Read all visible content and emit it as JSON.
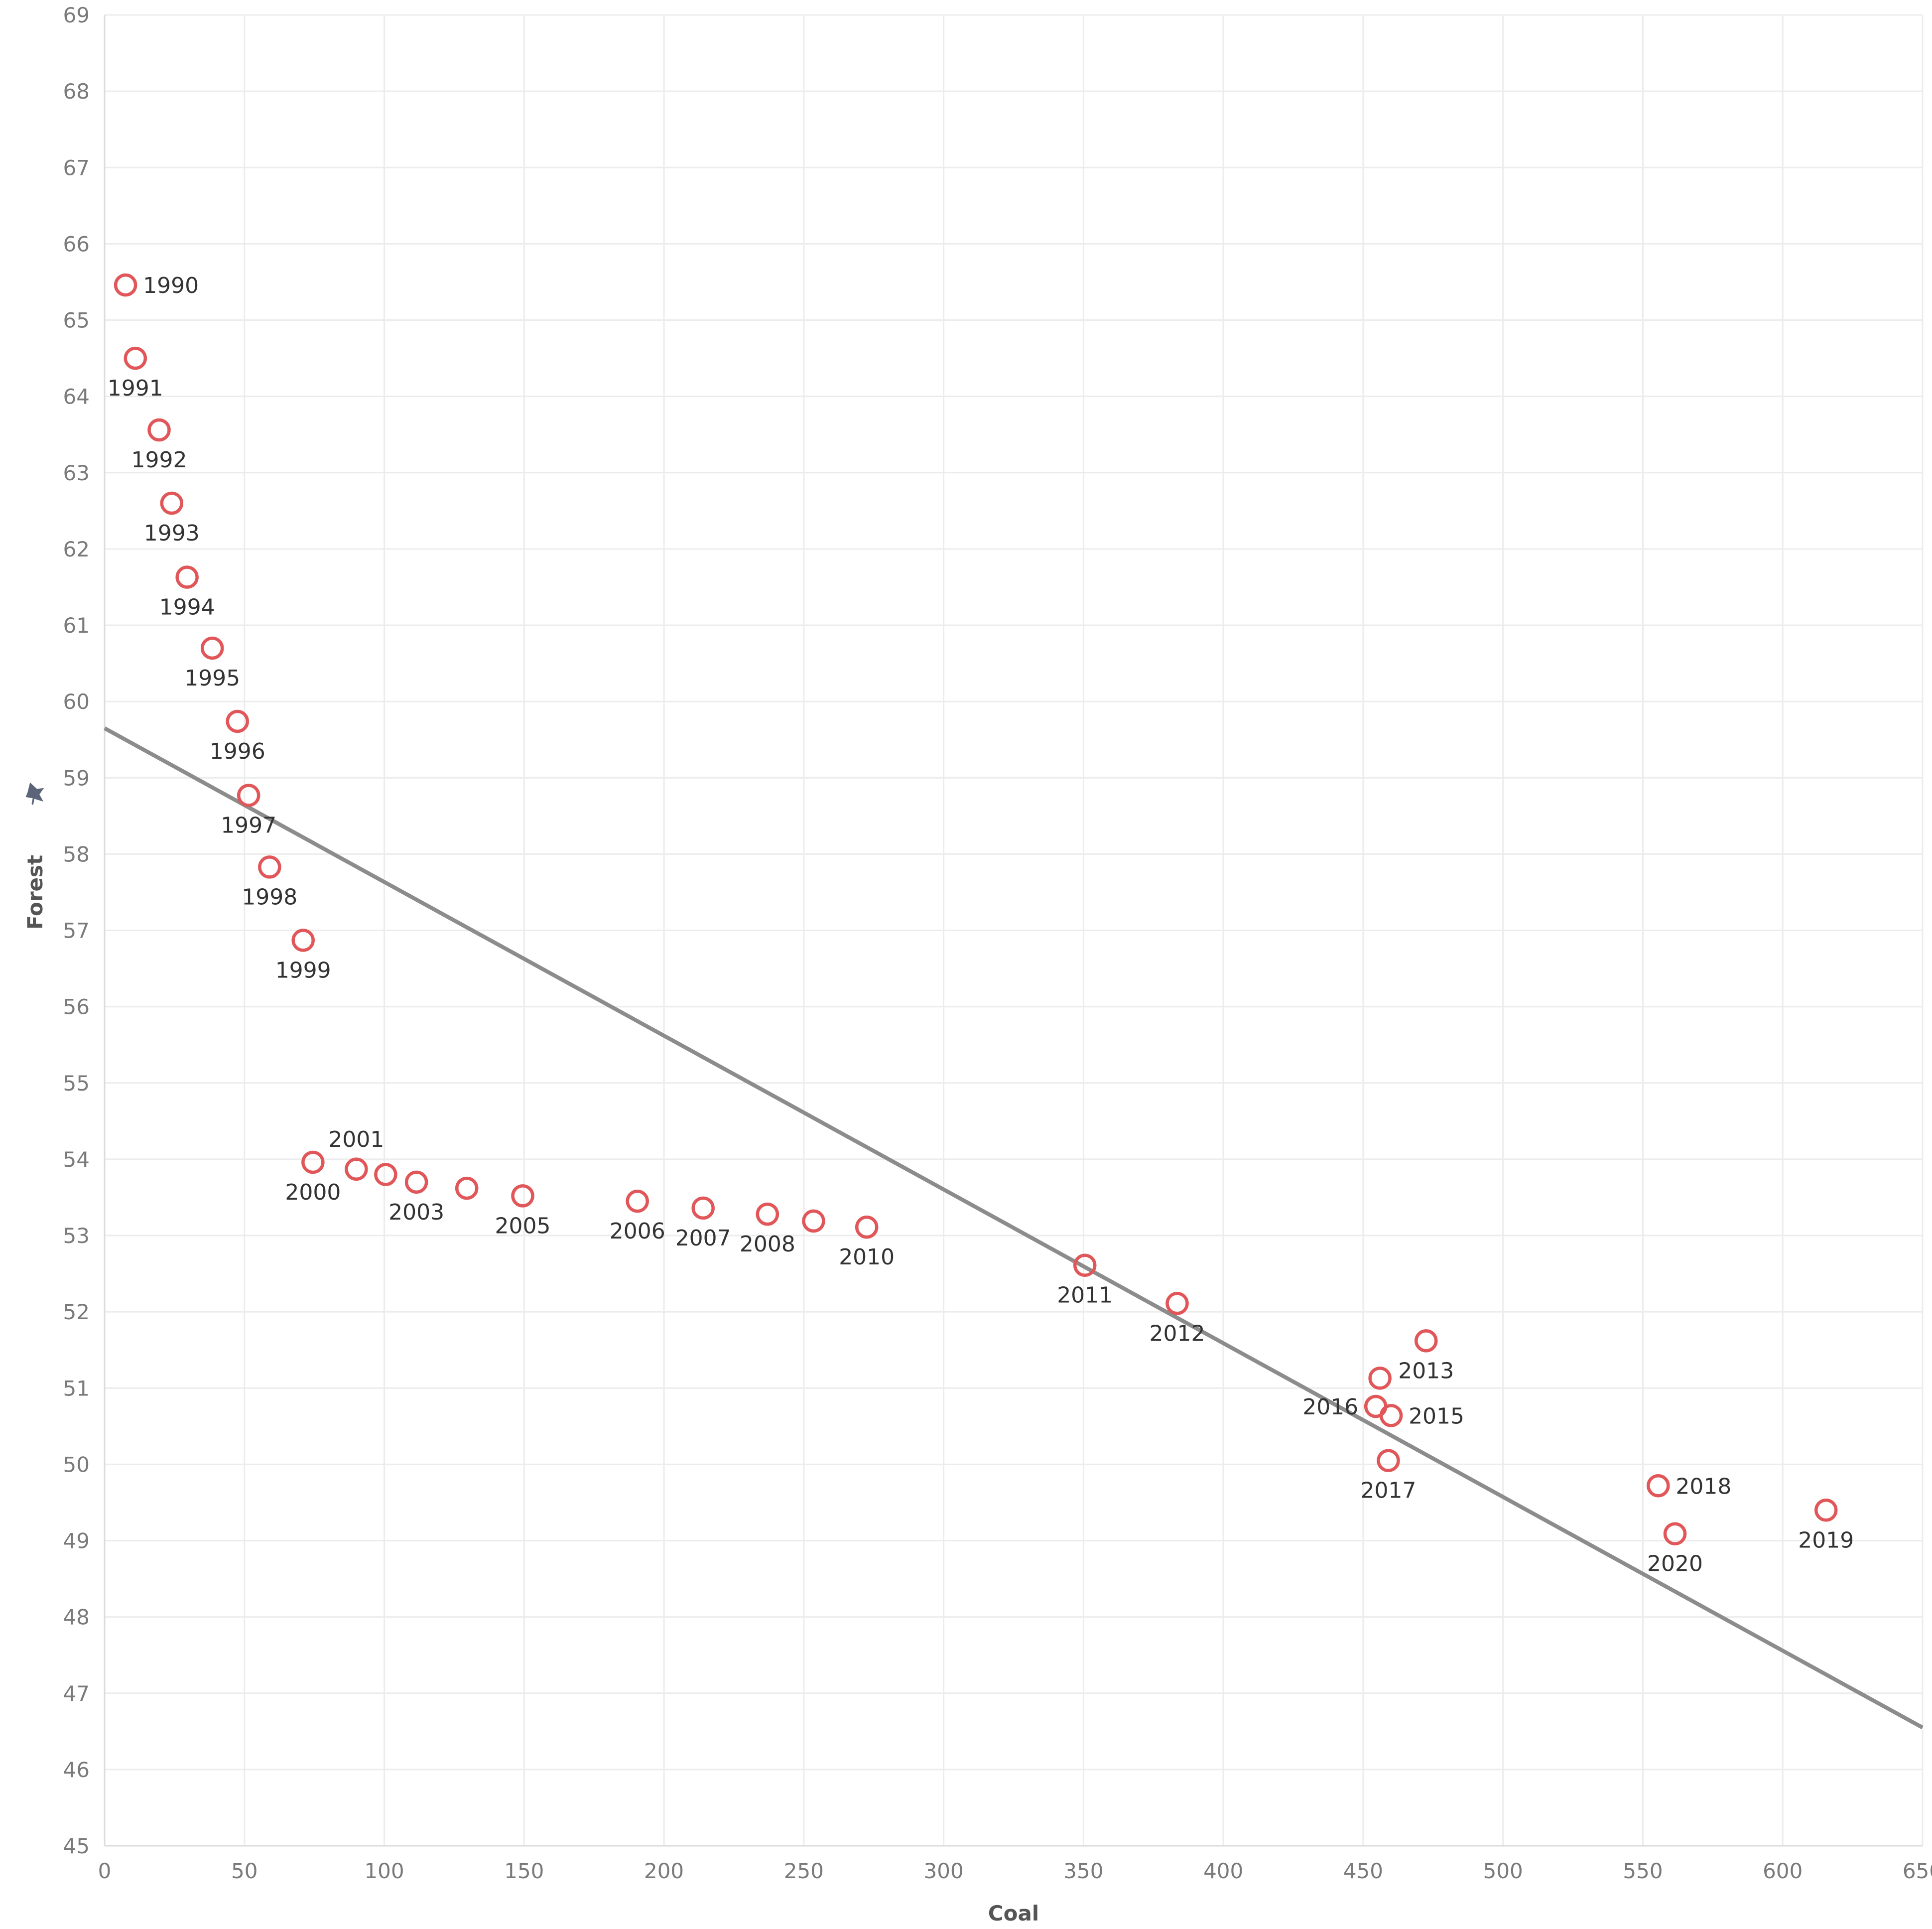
{
  "chart_data": {
    "type": "scatter",
    "xlabel": "Coal",
    "ylabel": "Forest",
    "xlim": [
      0,
      650
    ],
    "ylim": [
      45,
      69
    ],
    "xticks": [
      0,
      50,
      100,
      150,
      200,
      250,
      300,
      350,
      400,
      450,
      500,
      550,
      600,
      650
    ],
    "yticks": [
      45,
      46,
      47,
      48,
      49,
      50,
      51,
      52,
      53,
      54,
      55,
      56,
      57,
      58,
      59,
      60,
      61,
      62,
      63,
      64,
      65,
      66,
      67,
      68,
      69
    ],
    "grid": true,
    "trendline": {
      "x": [
        0,
        650
      ],
      "y": [
        59.65,
        46.55
      ]
    },
    "ylabel_icon": "pin-icon",
    "colors": {
      "point": "#e15759",
      "trend": "#8c8c8c"
    },
    "points": [
      {
        "x": 7.5,
        "y": 65.46,
        "label": "1990",
        "pos": "right"
      },
      {
        "x": 11,
        "y": 64.5,
        "label": "1991",
        "pos": "below"
      },
      {
        "x": 19.5,
        "y": 63.56,
        "label": "1992",
        "pos": "below"
      },
      {
        "x": 24,
        "y": 62.6,
        "label": "1993",
        "pos": "below"
      },
      {
        "x": 29.5,
        "y": 61.63,
        "label": "1994",
        "pos": "below"
      },
      {
        "x": 38.5,
        "y": 60.7,
        "label": "1995",
        "pos": "below"
      },
      {
        "x": 47.5,
        "y": 59.74,
        "label": "1996",
        "pos": "below"
      },
      {
        "x": 51.5,
        "y": 58.77,
        "label": "1997",
        "pos": "below"
      },
      {
        "x": 59,
        "y": 57.83,
        "label": "1998",
        "pos": "below"
      },
      {
        "x": 71,
        "y": 56.87,
        "label": "1999",
        "pos": "below"
      },
      {
        "x": 74.5,
        "y": 53.96,
        "label": "2000",
        "pos": "below"
      },
      {
        "x": 90,
        "y": 53.87,
        "label": "2001",
        "pos": "above"
      },
      {
        "x": 100.5,
        "y": 53.8,
        "label": "",
        "pos": "none"
      },
      {
        "x": 111.5,
        "y": 53.7,
        "label": "2003",
        "pos": "below"
      },
      {
        "x": 129.5,
        "y": 53.62,
        "label": "",
        "pos": "none"
      },
      {
        "x": 149.5,
        "y": 53.52,
        "label": "2005",
        "pos": "below"
      },
      {
        "x": 190.5,
        "y": 53.45,
        "label": "2006",
        "pos": "below"
      },
      {
        "x": 214,
        "y": 53.36,
        "label": "2007",
        "pos": "below"
      },
      {
        "x": 237,
        "y": 53.28,
        "label": "2008",
        "pos": "below"
      },
      {
        "x": 253.5,
        "y": 53.19,
        "label": "",
        "pos": "none"
      },
      {
        "x": 272.5,
        "y": 53.11,
        "label": "2010",
        "pos": "below"
      },
      {
        "x": 350.5,
        "y": 52.61,
        "label": "2011",
        "pos": "below"
      },
      {
        "x": 383.5,
        "y": 52.11,
        "label": "2012",
        "pos": "below"
      },
      {
        "x": 472.5,
        "y": 51.62,
        "label": "2013",
        "pos": "below"
      },
      {
        "x": 456,
        "y": 51.13,
        "label": "",
        "pos": "none"
      },
      {
        "x": 460,
        "y": 50.64,
        "label": "2015",
        "pos": "right"
      },
      {
        "x": 454.5,
        "y": 50.76,
        "label": "2016",
        "pos": "left"
      },
      {
        "x": 459,
        "y": 50.05,
        "label": "2017",
        "pos": "below"
      },
      {
        "x": 555.5,
        "y": 49.72,
        "label": "2018",
        "pos": "right"
      },
      {
        "x": 615.5,
        "y": 49.4,
        "label": "2019",
        "pos": "below"
      },
      {
        "x": 561.5,
        "y": 49.09,
        "label": "2020",
        "pos": "below"
      }
    ]
  }
}
